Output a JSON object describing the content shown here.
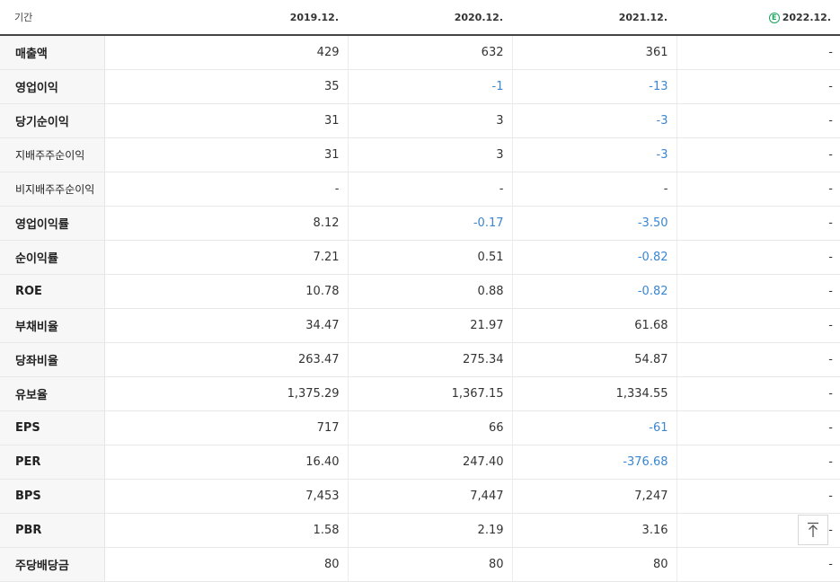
{
  "header": {
    "period_label": "기간",
    "columns": [
      "2019.12.",
      "2020.12.",
      "2021.12.",
      "2022.12."
    ],
    "estimate_badge": "E"
  },
  "rows": [
    {
      "label": "매출액",
      "values": [
        "429",
        "632",
        "361",
        "-"
      ]
    },
    {
      "label": "영업이익",
      "values": [
        "35",
        "-1",
        "-13",
        "-"
      ]
    },
    {
      "label": "당기순이익",
      "values": [
        "31",
        "3",
        "-3",
        "-"
      ]
    },
    {
      "label": "지배주주순이익",
      "values": [
        "31",
        "3",
        "-3",
        "-"
      ]
    },
    {
      "label": "비지배주주순이익",
      "values": [
        "-",
        "-",
        "-",
        "-"
      ]
    },
    {
      "label": "영업이익률",
      "values": [
        "8.12",
        "-0.17",
        "-3.50",
        "-"
      ]
    },
    {
      "label": "순이익률",
      "values": [
        "7.21",
        "0.51",
        "-0.82",
        "-"
      ]
    },
    {
      "label": "ROE",
      "values": [
        "10.78",
        "0.88",
        "-0.82",
        "-"
      ]
    },
    {
      "label": "부채비율",
      "values": [
        "34.47",
        "21.97",
        "61.68",
        "-"
      ]
    },
    {
      "label": "당좌비율",
      "values": [
        "263.47",
        "275.34",
        "54.87",
        "-"
      ]
    },
    {
      "label": "유보율",
      "values": [
        "1,375.29",
        "1,367.15",
        "1,334.55",
        "-"
      ]
    },
    {
      "label": "EPS",
      "values": [
        "717",
        "66",
        "-61",
        "-"
      ]
    },
    {
      "label": "PER",
      "values": [
        "16.40",
        "247.40",
        "-376.68",
        "-"
      ]
    },
    {
      "label": "BPS",
      "values": [
        "7,453",
        "7,447",
        "7,247",
        "-"
      ]
    },
    {
      "label": "PBR",
      "values": [
        "1.58",
        "2.19",
        "3.16",
        "-"
      ]
    },
    {
      "label": "주당배당금",
      "values": [
        "80",
        "80",
        "80",
        "-"
      ]
    }
  ],
  "colors": {
    "negative": "#3a86d1",
    "estimate": "#19a35b"
  },
  "scroll_top_icon": "arrow-up-to-top-icon"
}
